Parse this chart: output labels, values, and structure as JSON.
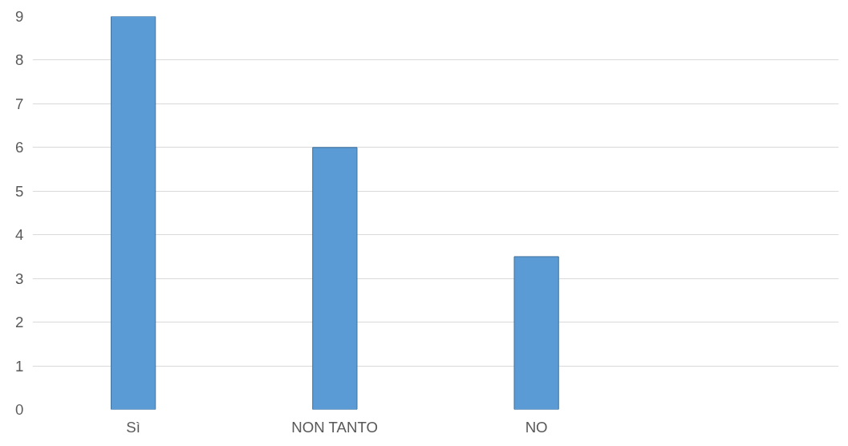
{
  "chart_data": {
    "type": "bar",
    "categories": [
      "Sì",
      "NON TANTO",
      "NO",
      null
    ],
    "values": [
      9,
      6,
      3.5,
      null
    ],
    "color": "#5b9bd5",
    "ylim": [
      0,
      9
    ],
    "yticks": [
      0,
      1,
      2,
      3,
      4,
      5,
      6,
      7,
      8,
      9
    ],
    "grid": "y"
  }
}
